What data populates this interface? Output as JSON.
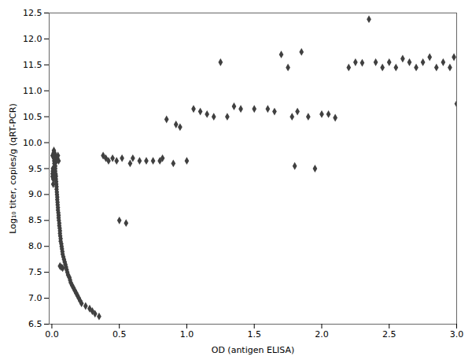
{
  "chart_data": {
    "type": "scatter",
    "x": [
      0.005,
      0.005,
      0.005,
      0.007,
      0.008,
      0.01,
      0.01,
      0.012,
      0.012,
      0.013,
      0.015,
      0.015,
      0.015,
      0.017,
      0.018,
      0.02,
      0.02,
      0.02,
      0.022,
      0.022,
      0.025,
      0.025,
      0.025,
      0.027,
      0.028,
      0.03,
      0.03,
      0.032,
      0.033,
      0.035,
      0.035,
      0.037,
      0.038,
      0.04,
      0.04,
      0.042,
      0.043,
      0.045,
      0.045,
      0.048,
      0.05,
      0.05,
      0.052,
      0.055,
      0.055,
      0.058,
      0.06,
      0.06,
      0.062,
      0.065,
      0.065,
      0.07,
      0.072,
      0.075,
      0.078,
      0.08,
      0.085,
      0.09,
      0.095,
      0.1,
      0.105,
      0.11,
      0.115,
      0.12,
      0.13,
      0.135,
      0.14,
      0.15,
      0.16,
      0.17,
      0.18,
      0.19,
      0.2,
      0.21,
      0.22,
      0.25,
      0.28,
      0.3,
      0.32,
      0.35,
      0.38,
      0.4,
      0.42,
      0.45,
      0.48,
      0.5,
      0.52,
      0.55,
      0.58,
      0.6,
      0.65,
      0.7,
      0.75,
      0.8,
      0.82,
      0.85,
      0.9,
      0.92,
      0.95,
      1.0,
      1.05,
      1.1,
      1.15,
      1.2,
      1.25,
      1.3,
      1.35,
      1.4,
      1.5,
      1.6,
      1.65,
      1.7,
      1.75,
      1.78,
      1.8,
      1.82,
      1.85,
      1.9,
      1.95,
      2.0,
      2.05,
      2.1,
      2.2,
      2.25,
      2.3,
      2.35,
      2.4,
      2.45,
      2.5,
      2.55,
      2.6,
      2.65,
      2.7,
      2.75,
      2.8,
      2.85,
      2.9,
      2.95,
      2.98,
      3.0,
      0.025,
      0.03,
      0.035,
      0.04,
      0.045,
      0.05,
      0.06,
      0.07,
      0.08
    ],
    "values": [
      9.75,
      9.4,
      9.35,
      9.45,
      9.5,
      9.3,
      9.2,
      9.4,
      9.35,
      9.8,
      9.85,
      9.75,
      9.7,
      9.65,
      9.6,
      9.8,
      9.75,
      9.7,
      9.65,
      9.6,
      9.55,
      9.5,
      9.45,
      9.4,
      9.38,
      9.35,
      9.3,
      9.25,
      9.2,
      9.15,
      9.1,
      9.05,
      9.0,
      8.95,
      8.9,
      8.85,
      8.8,
      8.75,
      8.7,
      8.65,
      8.6,
      8.55,
      8.5,
      8.45,
      8.4,
      8.35,
      8.3,
      8.25,
      8.2,
      8.15,
      8.1,
      8.05,
      8.0,
      7.95,
      7.9,
      7.85,
      7.8,
      7.75,
      7.7,
      7.65,
      7.6,
      7.55,
      7.5,
      7.45,
      7.4,
      7.35,
      7.3,
      7.25,
      7.2,
      7.15,
      7.1,
      7.05,
      7.0,
      6.95,
      6.9,
      6.85,
      6.8,
      6.75,
      6.7,
      6.65,
      9.75,
      9.7,
      9.65,
      9.7,
      9.65,
      8.5,
      9.7,
      8.45,
      9.6,
      9.7,
      9.65,
      9.65,
      9.65,
      9.65,
      9.7,
      10.45,
      9.6,
      10.35,
      10.3,
      9.65,
      10.65,
      10.6,
      10.55,
      10.5,
      11.55,
      10.5,
      10.7,
      10.65,
      10.65,
      10.65,
      10.6,
      11.7,
      11.45,
      10.5,
      9.55,
      10.6,
      11.75,
      10.5,
      9.5,
      10.55,
      10.55,
      10.48,
      11.45,
      11.55,
      11.54,
      12.38,
      11.55,
      11.45,
      11.55,
      11.45,
      11.62,
      11.55,
      11.45,
      11.55,
      11.65,
      11.45,
      11.55,
      11.45,
      11.65,
      10.75,
      9.75,
      9.7,
      9.65,
      9.7,
      9.75,
      9.65,
      7.62,
      7.6,
      7.58
    ],
    "xlabel": "OD (antigen ELISA)",
    "ylabel": "Log₁₀ titer, copies/g (qRT-PCR)",
    "xlim": [
      -0.02,
      3.0
    ],
    "ylim": [
      6.5,
      12.5
    ],
    "xticks": [
      {
        "value": 0,
        "label": "0.0"
      },
      0.5,
      {
        "value": 1,
        "label": "1.0"
      },
      1.5,
      {
        "value": 2,
        "label": "2.0"
      },
      2.5,
      {
        "value": 3,
        "label": "3.0"
      }
    ],
    "yticks": [
      6.5,
      {
        "value": 7,
        "label": "7.0"
      },
      7.5,
      {
        "value": 8,
        "label": "8.0"
      },
      8.5,
      {
        "value": 9,
        "label": "9.0"
      },
      9.5,
      {
        "value": 10,
        "label": "10.0"
      },
      10.5,
      {
        "value": 11,
        "label": "11.0"
      },
      11.5,
      {
        "value": 12,
        "label": "12.0"
      },
      12.5
    ],
    "color": "#404040",
    "marker": "diamond",
    "grid": false
  }
}
